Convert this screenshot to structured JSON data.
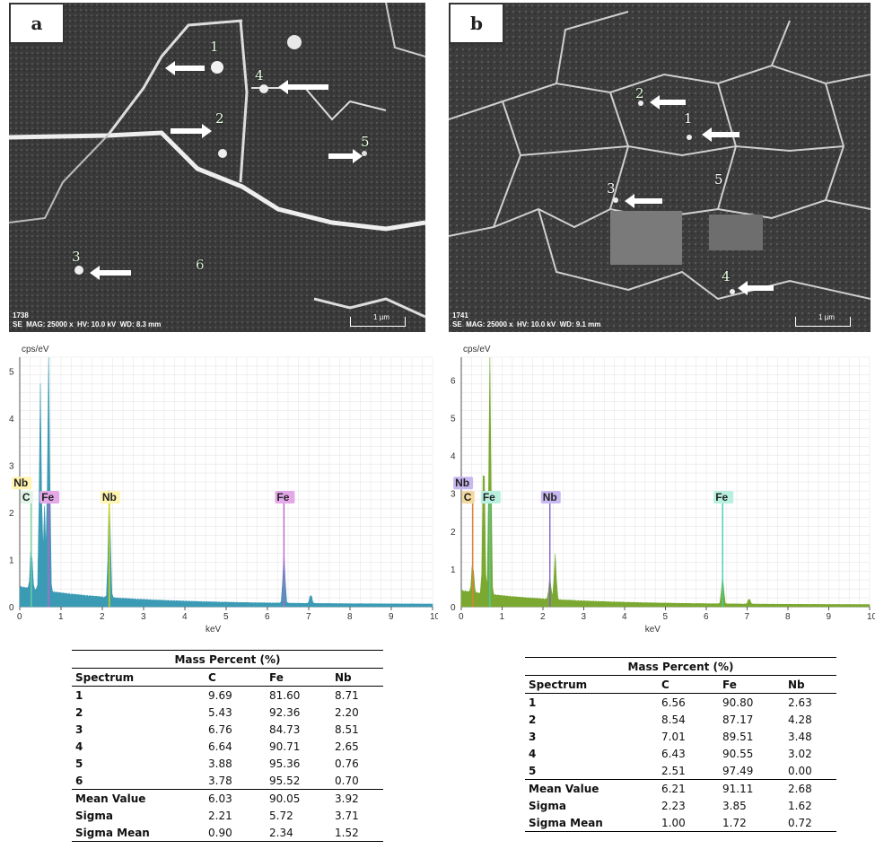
{
  "panels": [
    {
      "label": "a",
      "sem": {
        "id": "1738",
        "info": "SE  MAG: 25000 x  HV: 10.0 kV  WD: 8.3 mm",
        "scale": "1 µm",
        "points": [
          "1",
          "2",
          "3",
          "4",
          "5",
          "6"
        ]
      },
      "spectrum": {
        "unit_label": "cps/eV",
        "x_label": "keV",
        "peaks": [
          "Nb",
          "C",
          "Fe",
          "Nb",
          "Fe"
        ]
      },
      "table": {
        "title": "Mass Percent (%)",
        "headers": [
          "Spectrum",
          "C",
          "Fe",
          "Nb"
        ],
        "rows": [
          [
            "1",
            "9.69",
            "81.60",
            "8.71"
          ],
          [
            "2",
            "5.43",
            "92.36",
            "2.20"
          ],
          [
            "3",
            "6.76",
            "84.73",
            "8.51"
          ],
          [
            "4",
            "6.64",
            "90.71",
            "2.65"
          ],
          [
            "5",
            "3.88",
            "95.36",
            "0.76"
          ],
          [
            "6",
            "3.78",
            "95.52",
            "0.70"
          ]
        ],
        "stats": [
          [
            "Mean Value",
            "6.03",
            "90.05",
            "3.92"
          ],
          [
            "Sigma",
            "2.21",
            "5.72",
            "3.71"
          ],
          [
            "Sigma Mean",
            "0.90",
            "2.34",
            "1.52"
          ]
        ]
      }
    },
    {
      "label": "b",
      "sem": {
        "id": "1741",
        "info": "SE  MAG: 25000 x  HV: 10.0 kV  WD: 9.1 mm",
        "scale": "1 µm",
        "points": [
          "1",
          "2",
          "3",
          "4",
          "5"
        ]
      },
      "spectrum": {
        "unit_label": "cps/eV",
        "x_label": "keV",
        "peaks": [
          "Nb",
          "C",
          "Fe",
          "Nb",
          "Fe"
        ]
      },
      "table": {
        "title": "Mass Percent (%)",
        "headers": [
          "Spectrum",
          "C",
          "Fe",
          "Nb"
        ],
        "rows": [
          [
            "1",
            "6.56",
            "90.80",
            "2.63"
          ],
          [
            "2",
            "8.54",
            "87.17",
            "4.28"
          ],
          [
            "3",
            "7.01",
            "89.51",
            "3.48"
          ],
          [
            "4",
            "6.43",
            "90.55",
            "3.02"
          ],
          [
            "5",
            "2.51",
            "97.49",
            "0.00"
          ]
        ],
        "stats": [
          [
            "Mean Value",
            "6.21",
            "91.11",
            "2.68"
          ],
          [
            "Sigma",
            "2.23",
            "3.85",
            "1.62"
          ],
          [
            "Sigma Mean",
            "1.00",
            "1.72",
            "0.72"
          ]
        ]
      }
    }
  ],
  "chart_data": [
    {
      "type": "area",
      "x_ticks": [
        "0",
        "1",
        "2",
        "3",
        "4",
        "5",
        "6",
        "7",
        "8",
        "9",
        "10"
      ],
      "y_ticks": [
        "0",
        "1",
        "2",
        "3",
        "4",
        "5"
      ],
      "xlabel": "keV",
      "ylabel": "cps/eV",
      "xlim": [
        0,
        10
      ],
      "ylim": [
        0,
        5.3
      ],
      "fill_color": "#3b9bb5",
      "peaks_keV": [
        {
          "x": 0.28,
          "y": 0.9,
          "label": "C"
        },
        {
          "x": 0.5,
          "y": 4.4
        },
        {
          "x": 0.6,
          "y": 1.8
        },
        {
          "x": 0.7,
          "y": 5.3,
          "label": "Fe"
        },
        {
          "x": 2.17,
          "y": 2.3,
          "label": "Nb"
        },
        {
          "x": 6.4,
          "y": 1.1,
          "label": "Fe"
        },
        {
          "x": 7.05,
          "y": 0.2
        }
      ],
      "label_colors": {
        "C": "#e0f4e8",
        "Fe": "#e4a8e8",
        "Nb": "#fff4b0"
      },
      "line_colors": {
        "C": "#6fd0a0",
        "Fe": "#c060d0",
        "Nb": "#d8d800"
      }
    },
    {
      "type": "area",
      "x_ticks": [
        "0",
        "1",
        "2",
        "3",
        "4",
        "5",
        "6",
        "7",
        "8",
        "9",
        "10"
      ],
      "y_ticks": [
        "0",
        "1",
        "2",
        "3",
        "4",
        "5",
        "6"
      ],
      "xlabel": "keV",
      "ylabel": "cps/eV",
      "xlim": [
        0,
        10
      ],
      "ylim": [
        0,
        6.6
      ],
      "fill_color": "#7aa830",
      "peaks_keV": [
        {
          "x": 0.28,
          "y": 0.8,
          "label": "C"
        },
        {
          "x": 0.55,
          "y": 3.9
        },
        {
          "x": 0.7,
          "y": 6.6,
          "label": "Fe"
        },
        {
          "x": 2.17,
          "y": 0.6,
          "label": "Nb"
        },
        {
          "x": 2.3,
          "y": 1.2
        },
        {
          "x": 6.4,
          "y": 0.75,
          "label": "Fe"
        },
        {
          "x": 7.05,
          "y": 0.15
        }
      ],
      "label_colors": {
        "C": "#f4d8a0",
        "Fe": "#b8f0e0",
        "Nb": "#c8b8f0"
      },
      "line_colors": {
        "C": "#e08030",
        "Fe": "#40d0b0",
        "Nb": "#8060d0"
      }
    }
  ]
}
